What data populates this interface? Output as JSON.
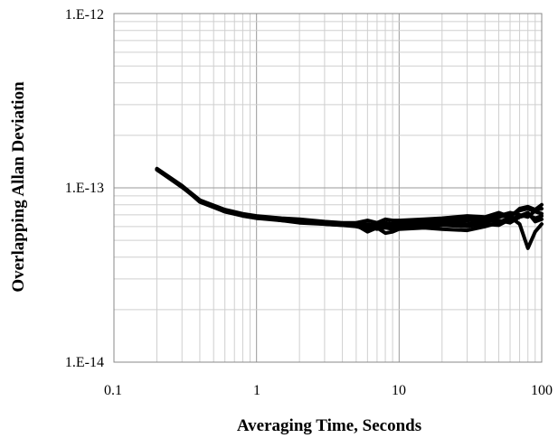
{
  "chart_data": {
    "type": "line",
    "xlabel": "Averaging Time, Seconds",
    "ylabel": "Overlapping Allan Deviation",
    "x_scale": "log",
    "y_scale": "log",
    "xlim": [
      0.1,
      100
    ],
    "ylim": [
      1e-14,
      1e-12
    ],
    "x_tick_labels": [
      "0.1",
      "1",
      "10",
      "100"
    ],
    "y_tick_labels": [
      "1.E-12",
      "1.E-13",
      "1.E-14"
    ],
    "grid": "major and minor",
    "legend": "none",
    "line_color": "#000000",
    "x": [
      0.2,
      0.3,
      0.4,
      0.6,
      0.8,
      1,
      1.5,
      2,
      3,
      4,
      5,
      6,
      7,
      8,
      9,
      10,
      15,
      20,
      30,
      40,
      50,
      60,
      70,
      80,
      90,
      100
    ],
    "series": [
      {
        "values": [
          1.28e-13,
          1.02e-13,
          8.5e-14,
          7.4e-14,
          7e-14,
          6.8e-14,
          6.6e-14,
          6.5e-14,
          6.3e-14,
          6.2e-14,
          6.2e-14,
          6.1e-14,
          6.2e-14,
          6e-14,
          6.1e-14,
          6.2e-14,
          6.3e-14,
          6.4e-14,
          6.5e-14,
          6.6e-14,
          6.8e-14,
          7e-14,
          7.4e-14,
          7.6e-14,
          7.3e-14,
          7.1e-14
        ]
      },
      {
        "values": [
          1.27e-13,
          1.01e-13,
          8.4e-14,
          7.3e-14,
          7e-14,
          6.7e-14,
          6.6e-14,
          6.4e-14,
          6.3e-14,
          6.2e-14,
          6.1e-14,
          5.6e-14,
          5.9e-14,
          5.5e-14,
          5.6e-14,
          5.8e-14,
          5.9e-14,
          5.8e-14,
          5.7e-14,
          6e-14,
          6.3e-14,
          6.8e-14,
          6.2e-14,
          4.5e-14,
          5.6e-14,
          6.2e-14
        ]
      },
      {
        "values": [
          1.29e-13,
          1.03e-13,
          8.5e-14,
          7.5e-14,
          7.1e-14,
          6.9e-14,
          6.7e-14,
          6.6e-14,
          6.4e-14,
          6.3e-14,
          6.3e-14,
          6.5e-14,
          6.3e-14,
          6.6e-14,
          6.5e-14,
          6.5e-14,
          6.6e-14,
          6.7e-14,
          6.9e-14,
          6.8e-14,
          7.2e-14,
          6.8e-14,
          7.6e-14,
          7.8e-14,
          7.5e-14,
          8e-14
        ]
      },
      {
        "values": [
          1.28e-13,
          1.02e-13,
          8.4e-14,
          7.4e-14,
          7e-14,
          6.8e-14,
          6.5e-14,
          6.4e-14,
          6.2e-14,
          6.1e-14,
          6.1e-14,
          6e-14,
          5.8e-14,
          5.9e-14,
          5.8e-14,
          5.9e-14,
          6e-14,
          6.1e-14,
          6e-14,
          6.2e-14,
          6.1e-14,
          6.6e-14,
          6.9e-14,
          7.2e-14,
          6.4e-14,
          6.6e-14
        ]
      },
      {
        "values": [
          1.27e-13,
          1.02e-13,
          8.3e-14,
          7.3e-14,
          6.9e-14,
          6.7e-14,
          6.5e-14,
          6.3e-14,
          6.2e-14,
          6.1e-14,
          6e-14,
          5.8e-14,
          6.1e-14,
          6.3e-14,
          6.2e-14,
          6.4e-14,
          6.5e-14,
          6.6e-14,
          6.7e-14,
          6.5e-14,
          6.9e-14,
          7.2e-14,
          7e-14,
          6.8e-14,
          7.4e-14,
          7.6e-14
        ]
      },
      {
        "values": [
          1.28e-13,
          1.01e-13,
          8.4e-14,
          7.3e-14,
          7e-14,
          6.8e-14,
          6.6e-14,
          6.4e-14,
          6.3e-14,
          6.2e-14,
          6.2e-14,
          6.2e-14,
          6e-14,
          6.1e-14,
          6e-14,
          6.1e-14,
          6.2e-14,
          6.3e-14,
          6.2e-14,
          6.4e-14,
          6.5e-14,
          6.3e-14,
          6.8e-14,
          7e-14,
          6.7e-14,
          6.9e-14
        ]
      }
    ]
  }
}
